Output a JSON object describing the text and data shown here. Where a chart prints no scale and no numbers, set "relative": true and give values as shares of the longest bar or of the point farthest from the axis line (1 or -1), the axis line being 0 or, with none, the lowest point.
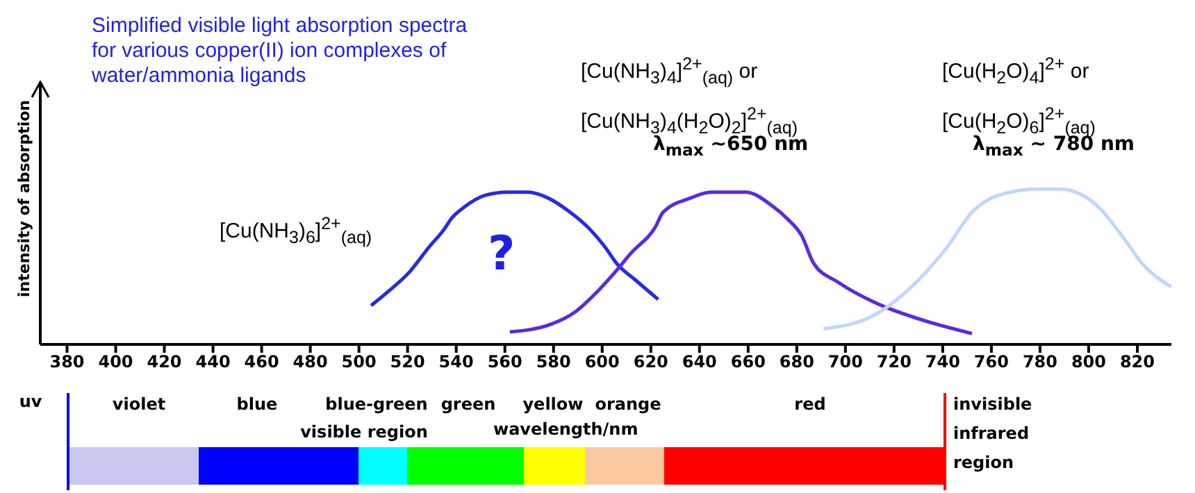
{
  "chart_data": {
    "type": "line",
    "title": "Simplified visible light absorption spectra for various copper(II) ion complexes of water/ammonia ligands",
    "xlabel": "wavelength/nm",
    "ylabel": "intensity of absorption",
    "relative": true,
    "xlim": [
      369,
      834
    ],
    "xticks": [
      380,
      400,
      420,
      440,
      460,
      480,
      500,
      520,
      540,
      560,
      580,
      600,
      620,
      640,
      660,
      680,
      700,
      720,
      740,
      760,
      780,
      800,
      820
    ],
    "legend": false,
    "grid": false,
    "marker": "none",
    "line_style": "solid",
    "series": [
      {
        "name": "[Cu(NH$_{3}$)$_{6}$]$^{2+}$$_{(aq)}$",
        "color": "#2828e6",
        "x": [
          505,
          512,
          521,
          529,
          535,
          538,
          543,
          552,
          561,
          569,
          578,
          586,
          595,
          601,
          606,
          614,
          623
        ],
        "values": [
          0.25,
          0.34,
          0.47,
          0.63,
          0.74,
          0.81,
          0.88,
          0.96,
          0.98,
          0.98,
          0.94,
          0.86,
          0.74,
          0.63,
          0.52,
          0.41,
          0.29
        ]
      },
      {
        "name": "[Cu(NH$_{3}$)$_{4}$]$^{2+}$$_{(aq)}$ or\n[Cu(NH$_{3}$)$_{4}$(H$_{2}$O)$_{2}$]$^{2+}$$_{(aq)}$",
        "color": "#5a28e6",
        "x": [
          562,
          579,
          589,
          598,
          605,
          612,
          622,
          625,
          636,
          645,
          659,
          670,
          676,
          682,
          687,
          697,
          712,
          731,
          752
        ],
        "values": [
          0.08,
          0.13,
          0.21,
          0.34,
          0.46,
          0.59,
          0.76,
          0.85,
          0.94,
          0.98,
          0.98,
          0.89,
          0.81,
          0.7,
          0.52,
          0.4,
          0.27,
          0.16,
          0.07
        ]
      },
      {
        "name": "[Cu(H$_{2}$O)$_{4}$]$^{2+}$ or\n[Cu(H$_{2}$O)$_{6}$]$^{2+}$$_{(aq)}$",
        "color": "#c0d6ff",
        "x": [
          691,
          712,
          731,
          742,
          752,
          763,
          779,
          788,
          803,
          815,
          822,
          834
        ],
        "values": [
          0.1,
          0.19,
          0.43,
          0.63,
          0.85,
          0.96,
          1.0,
          1.0,
          0.9,
          0.67,
          0.52,
          0.37
        ]
      }
    ],
    "annotations": [
      "λ$_{max}$ ~650 nm",
      "λ$_{max}$ ~ 780 nm",
      "?",
      "visible region",
      "uv",
      "violet",
      "blue",
      "blue-green",
      "green",
      "yellow",
      "orange",
      "red",
      "invisible infrared region"
    ]
  }
}
